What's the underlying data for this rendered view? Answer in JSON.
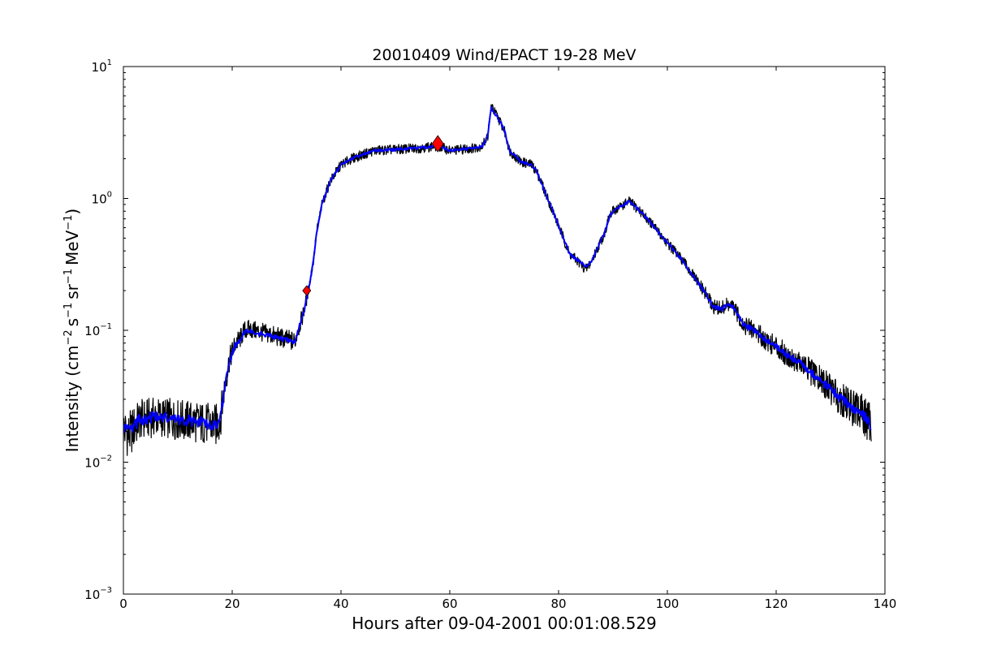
{
  "chart_data": {
    "type": "line",
    "title": "20010409 Wind/EPACT 19-28 MeV",
    "xlabel": "Hours after 09-04-2001 00:01:08.529",
    "ylabel_parts": [
      "Intensity (cm",
      "−2",
      "s",
      "−1",
      "sr",
      "−1",
      "MeV",
      "−1",
      ")"
    ],
    "yscale": "log",
    "xlim": [
      0,
      140
    ],
    "ylim": [
      0.001,
      10
    ],
    "x_ticks": [
      0,
      20,
      40,
      60,
      80,
      100,
      120,
      140
    ],
    "x_tick_labels": [
      "0",
      "20",
      "40",
      "60",
      "80",
      "100",
      "120",
      "140"
    ],
    "y_ticks": [
      {
        "value": 0.001,
        "base": "10",
        "exp": "−3"
      },
      {
        "value": 0.01,
        "base": "10",
        "exp": "−2"
      },
      {
        "value": 0.1,
        "base": "10",
        "exp": "−1"
      },
      {
        "value": 1,
        "base": "10",
        "exp": "0"
      },
      {
        "value": 10,
        "base": "10",
        "exp": "1"
      }
    ],
    "grid": false,
    "colors": {
      "raw": "#000000",
      "smoothed": "#0000ff",
      "marker": "#ff0000"
    },
    "series": [
      {
        "style": "raw",
        "x": [
          0,
          1,
          3,
          6,
          10,
          14,
          17,
          17.8,
          18.5,
          19.5,
          20.5,
          21.5,
          22.3,
          23,
          24,
          26,
          28,
          30,
          31.5,
          32,
          33,
          34,
          35,
          35.5,
          36.5,
          38,
          40,
          42,
          46,
          50,
          54,
          58,
          60,
          62,
          64,
          66,
          67,
          67.6,
          68,
          69,
          70,
          71,
          73,
          75,
          76,
          78,
          79.5,
          80.5,
          82,
          83,
          84,
          85,
          86,
          87.5,
          88.5,
          89.3,
          90,
          91,
          92,
          93,
          95,
          97,
          100,
          103,
          105,
          107,
          108.5,
          110,
          111,
          112,
          113,
          114,
          116,
          118,
          120,
          122,
          124,
          126,
          128,
          130,
          132,
          134,
          136,
          137.5
        ],
        "y": [
          0.018,
          0.016,
          0.021,
          0.022,
          0.021,
          0.02,
          0.019,
          0.021,
          0.035,
          0.06,
          0.078,
          0.087,
          0.1,
          0.102,
          0.1,
          0.095,
          0.09,
          0.085,
          0.082,
          0.098,
          0.13,
          0.2,
          0.35,
          0.55,
          0.9,
          1.35,
          1.8,
          2.0,
          2.3,
          2.35,
          2.4,
          2.5,
          2.3,
          2.35,
          2.4,
          2.5,
          3.0,
          5.0,
          4.7,
          4.0,
          3.3,
          2.3,
          1.9,
          1.8,
          1.6,
          1.0,
          0.7,
          0.55,
          0.38,
          0.35,
          0.32,
          0.29,
          0.33,
          0.45,
          0.55,
          0.72,
          0.8,
          0.85,
          0.9,
          0.95,
          0.8,
          0.65,
          0.46,
          0.33,
          0.25,
          0.19,
          0.15,
          0.145,
          0.155,
          0.15,
          0.13,
          0.11,
          0.1,
          0.085,
          0.075,
          0.065,
          0.058,
          0.05,
          0.042,
          0.036,
          0.03,
          0.026,
          0.023,
          0.019
        ]
      },
      {
        "style": "smoothed",
        "x": [
          0,
          1,
          3,
          6,
          10,
          14,
          17,
          17.8,
          18.5,
          19.5,
          20.5,
          21.5,
          22.3,
          23,
          24,
          26,
          28,
          30,
          31.5,
          32,
          33,
          34,
          35,
          35.5,
          36.5,
          38,
          40,
          42,
          46,
          50,
          54,
          58,
          60,
          62,
          64,
          66,
          67,
          67.6,
          68,
          69,
          70,
          71,
          73,
          75,
          76,
          78,
          79.5,
          80.5,
          82,
          83,
          84,
          85,
          86,
          87.5,
          88.5,
          89.3,
          90,
          91,
          92,
          93,
          95,
          97,
          100,
          103,
          105,
          107,
          108.5,
          110,
          111,
          112,
          113,
          114,
          116,
          118,
          120,
          122,
          124,
          126,
          128,
          130,
          132,
          134,
          136,
          137.5
        ],
        "y": [
          0.018,
          0.017,
          0.021,
          0.022,
          0.021,
          0.02,
          0.019,
          0.021,
          0.034,
          0.058,
          0.076,
          0.085,
          0.097,
          0.099,
          0.097,
          0.093,
          0.088,
          0.084,
          0.082,
          0.097,
          0.13,
          0.2,
          0.35,
          0.55,
          0.9,
          1.35,
          1.8,
          2.0,
          2.3,
          2.35,
          2.4,
          2.5,
          2.3,
          2.35,
          2.4,
          2.5,
          3.0,
          4.9,
          4.6,
          4.0,
          3.3,
          2.3,
          1.9,
          1.8,
          1.6,
          1.0,
          0.7,
          0.55,
          0.38,
          0.35,
          0.33,
          0.3,
          0.33,
          0.45,
          0.55,
          0.72,
          0.8,
          0.85,
          0.9,
          0.95,
          0.8,
          0.65,
          0.46,
          0.33,
          0.25,
          0.19,
          0.15,
          0.145,
          0.155,
          0.15,
          0.13,
          0.11,
          0.1,
          0.085,
          0.075,
          0.065,
          0.058,
          0.05,
          0.042,
          0.036,
          0.03,
          0.026,
          0.023,
          0.019
        ]
      }
    ],
    "markers": [
      {
        "shape": "diamond",
        "x": 57.8,
        "y": 2.6,
        "size": "large"
      },
      {
        "shape": "diamond",
        "x": 33.7,
        "y": 0.2,
        "size": "small"
      }
    ]
  }
}
